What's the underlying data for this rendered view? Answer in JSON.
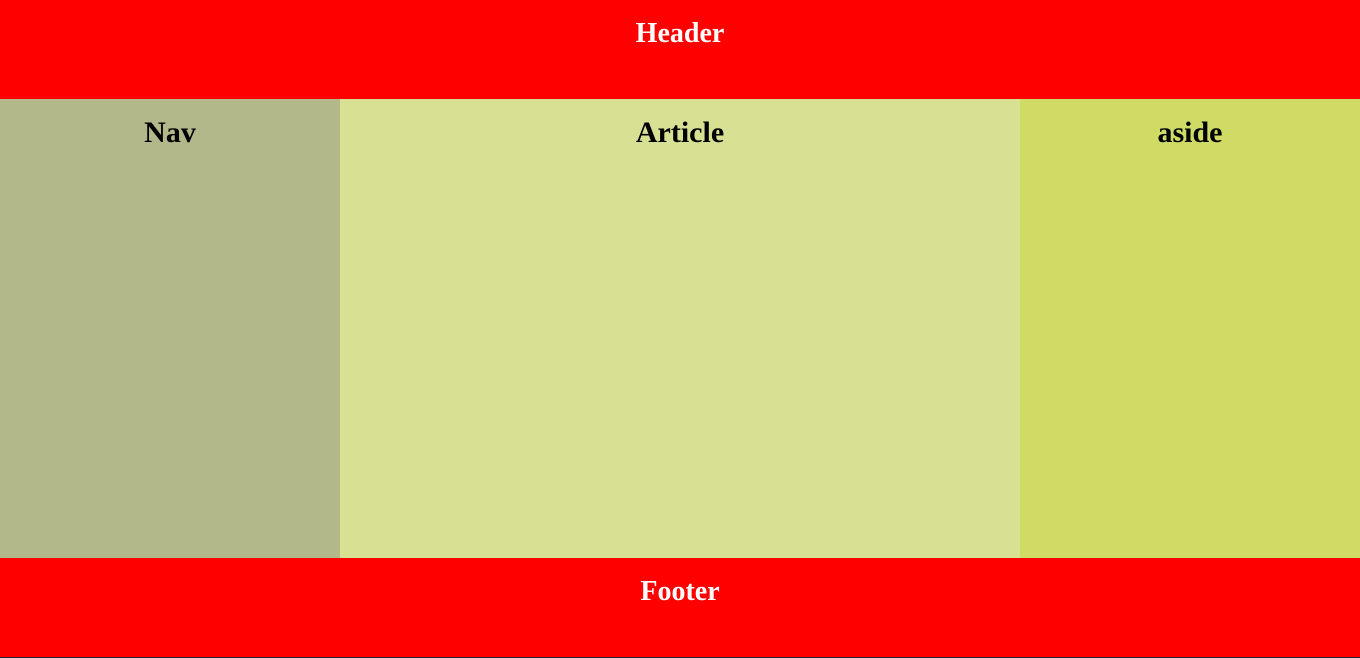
{
  "header": {
    "title": "Header"
  },
  "nav": {
    "title": "Nav"
  },
  "article": {
    "title": "Article"
  },
  "aside": {
    "title": "aside"
  },
  "footer": {
    "title": "Footer"
  },
  "colors": {
    "header_bg": "#ff0000",
    "nav_bg": "#b3b88a",
    "article_bg": "#d8e094",
    "aside_bg": "#cfdb65",
    "footer_bg": "#ff0000",
    "band_text": "#ffffff",
    "column_text": "#000000"
  }
}
